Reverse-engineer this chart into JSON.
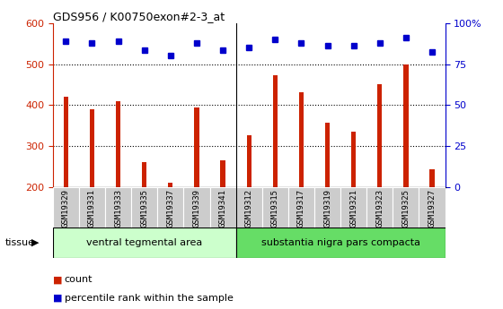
{
  "title": "GDS956 / K00750exon#2-3_at",
  "categories": [
    "GSM19329",
    "GSM19331",
    "GSM19333",
    "GSM19335",
    "GSM19337",
    "GSM19339",
    "GSM19341",
    "GSM19312",
    "GSM19315",
    "GSM19317",
    "GSM19319",
    "GSM19321",
    "GSM19323",
    "GSM19325",
    "GSM19327"
  ],
  "counts": [
    420,
    390,
    410,
    260,
    210,
    395,
    265,
    327,
    472,
    432,
    357,
    335,
    450,
    500,
    244
  ],
  "percentiles_raw": [
    556,
    551,
    556,
    535,
    521,
    551,
    535,
    540,
    560,
    551,
    544,
    544,
    551,
    565,
    530
  ],
  "ylim_left": [
    200,
    600
  ],
  "yticks_left": [
    200,
    300,
    400,
    500,
    600
  ],
  "ylim_right": [
    0,
    100
  ],
  "yticks_right": [
    0,
    25,
    50,
    75,
    100
  ],
  "bar_color": "#cc2200",
  "dot_color": "#0000cc",
  "group1_label": "ventral tegmental area",
  "group2_label": "substantia nigra pars compacta",
  "group1_count": 7,
  "group2_count": 8,
  "group1_bg": "#ccffcc",
  "group2_bg": "#66dd66",
  "tissue_label": "tissue",
  "legend_count": "count",
  "legend_percentile": "percentile rank within the sample",
  "bar_width": 0.18,
  "ylabel_right_color": "#0000cc",
  "ylabel_left_color": "#cc2200",
  "grid_color": "#000000",
  "sample_bg": "#cccccc",
  "title_fontsize": 9,
  "tick_fontsize": 6.5,
  "axis_fontsize": 8
}
